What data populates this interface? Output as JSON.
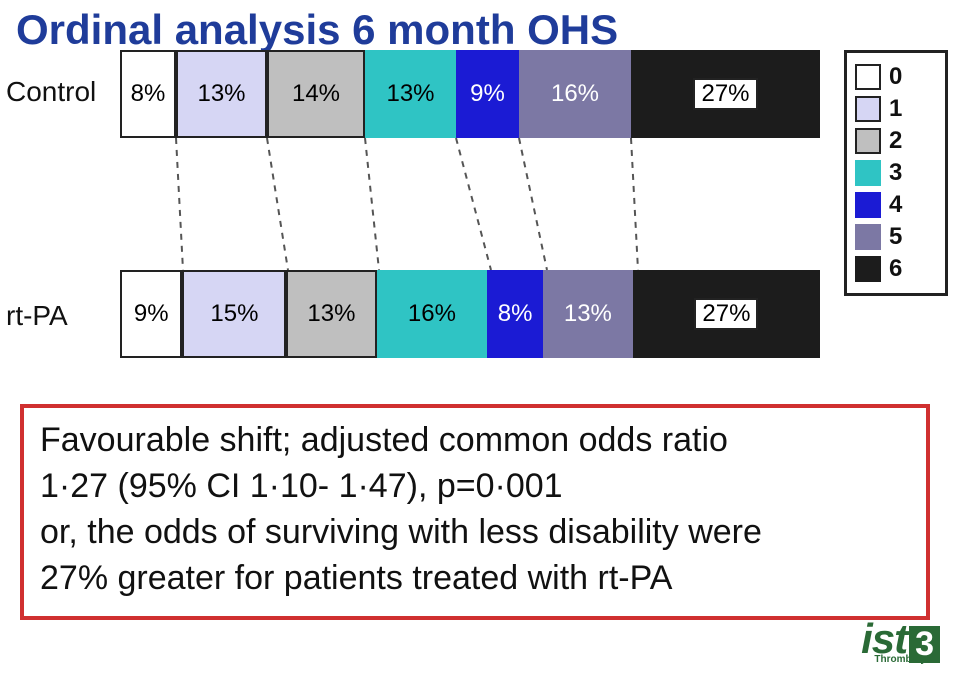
{
  "title": {
    "text": "Ordinal analysis 6 month OHS",
    "fontsize": 42
  },
  "categories": [
    {
      "key": "0",
      "color": "#ffffff",
      "outlined": true
    },
    {
      "key": "1",
      "color": "#d6d6f4",
      "outlined": true
    },
    {
      "key": "2",
      "color": "#bfbfbf",
      "outlined": true
    },
    {
      "key": "3",
      "color": "#2fc4c4",
      "outlined": false
    },
    {
      "key": "4",
      "color": "#1b1bd4",
      "outlined": false
    },
    {
      "key": "5",
      "color": "#7c78a4",
      "outlined": false
    },
    {
      "key": "6",
      "color": "#1c1c1c",
      "outlined": false
    }
  ],
  "rows": [
    {
      "label": "Control",
      "segments": [
        {
          "pct": 8,
          "label": "8%",
          "text_color": "#000000",
          "boxed": false
        },
        {
          "pct": 13,
          "label": "13%",
          "text_color": "#000000",
          "boxed": false
        },
        {
          "pct": 14,
          "label": "14%",
          "text_color": "#000000",
          "boxed": false
        },
        {
          "pct": 13,
          "label": "13%",
          "text_color": "#000000",
          "boxed": false
        },
        {
          "pct": 9,
          "label": "9%",
          "text_color": "#ffffff",
          "boxed": false
        },
        {
          "pct": 16,
          "label": "16%",
          "text_color": "#ffffff",
          "boxed": false
        },
        {
          "pct": 27,
          "label": "27%",
          "text_color": "#000000",
          "boxed": true
        }
      ]
    },
    {
      "label": "rt-PA",
      "segments": [
        {
          "pct": 9,
          "label": "9%",
          "text_color": "#000000",
          "boxed": false
        },
        {
          "pct": 15,
          "label": "15%",
          "text_color": "#000000",
          "boxed": false
        },
        {
          "pct": 13,
          "label": "13%",
          "text_color": "#000000",
          "boxed": false
        },
        {
          "pct": 16,
          "label": "16%",
          "text_color": "#000000",
          "boxed": false
        },
        {
          "pct": 8,
          "label": "8%",
          "text_color": "#ffffff",
          "boxed": false
        },
        {
          "pct": 13,
          "label": "13%",
          "text_color": "#ffffff",
          "boxed": false
        },
        {
          "pct": 27,
          "label": "27%",
          "text_color": "#000000",
          "boxed": true
        }
      ]
    }
  ],
  "connector_style": {
    "stroke": "#555555",
    "width": 2,
    "dash": "6,6"
  },
  "caption": {
    "line1": "Favourable shift; adjusted common odds ratio",
    "line2": "1·27 (95% CI 1·10- 1·47), p=0·001",
    "line3": "or, the odds of surviving with less disability were",
    "line4": "27% greater for patients treated with rt-PA",
    "border_color": "#d03030"
  },
  "legend": {
    "title_items": [
      "0",
      "1",
      "2",
      "3",
      "4",
      "5",
      "6"
    ]
  },
  "logo": {
    "text": "ist",
    "badge": "3",
    "sub": "Thrombolysis",
    "color": "#2a6a36"
  }
}
